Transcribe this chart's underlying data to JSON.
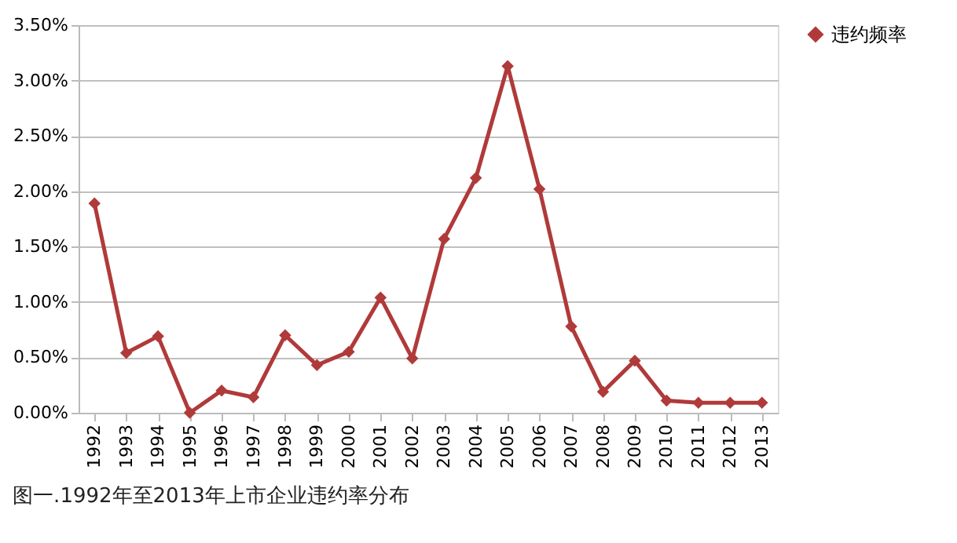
{
  "chart_data": {
    "type": "line",
    "categories": [
      "1992",
      "1993",
      "1994",
      "1995",
      "1996",
      "1997",
      "1998",
      "1999",
      "2000",
      "2001",
      "2002",
      "2003",
      "2004",
      "2005",
      "2006",
      "2007",
      "2008",
      "2009",
      "2010",
      "2011",
      "2012",
      "2013"
    ],
    "series": [
      {
        "name": "违约频率",
        "color": "#b03a3a",
        "values": [
          1.89,
          0.54,
          0.69,
          0.0,
          0.2,
          0.14,
          0.7,
          0.43,
          0.55,
          1.04,
          0.49,
          1.57,
          2.12,
          3.13,
          2.02,
          0.78,
          0.19,
          0.47,
          0.11,
          0.09,
          0.09,
          0.09
        ]
      }
    ],
    "ylim": [
      0,
      3.5
    ],
    "yticks": [
      {
        "value": 0,
        "label": "0.00%"
      },
      {
        "value": 0.5,
        "label": "0.50%"
      },
      {
        "value": 1,
        "label": "1.00%"
      },
      {
        "value": 1.5,
        "label": "1.50%"
      },
      {
        "value": 2,
        "label": "2.00%"
      },
      {
        "value": 2.5,
        "label": "2.50%"
      },
      {
        "value": 3,
        "label": "3.00%"
      },
      {
        "value": 3.5,
        "label": "3.50%"
      }
    ],
    "grid": "y",
    "legend": "right",
    "marker": "diamond",
    "line_style": "solid",
    "annotations": [
      "图一.1992年至2013年上市企业违约率分布"
    ]
  }
}
